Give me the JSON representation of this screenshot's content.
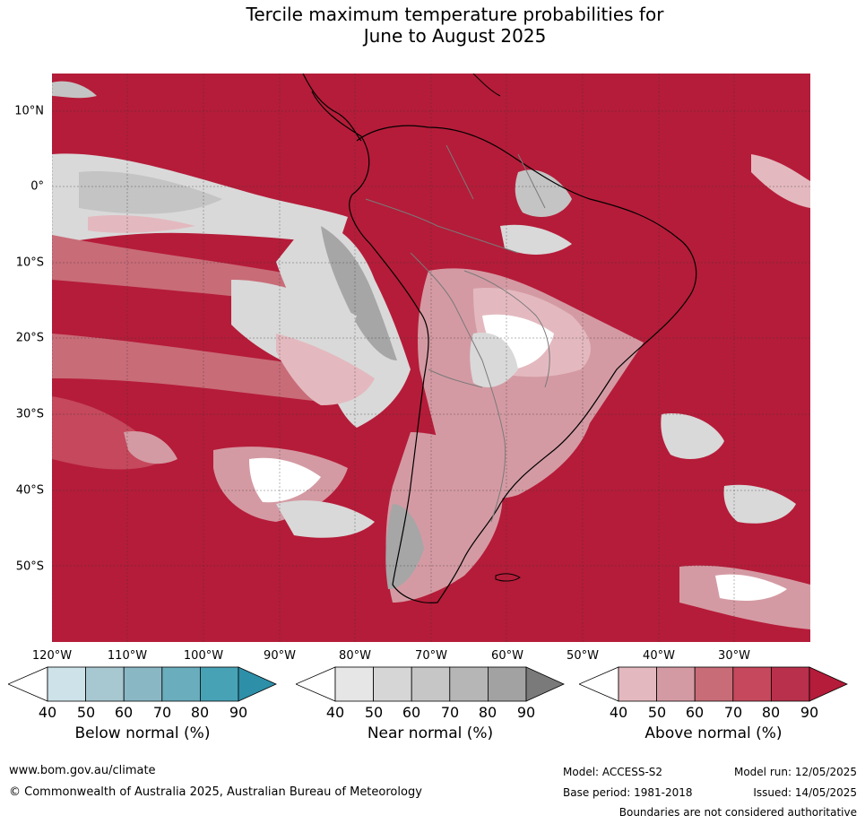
{
  "title": {
    "line1": "Tercile maximum temperature probabilities for",
    "line2": "June to August 2025"
  },
  "map": {
    "lat_labels": [
      "10°N",
      "0°",
      "10°S",
      "20°S",
      "30°S",
      "40°S",
      "50°S"
    ],
    "lon_labels": [
      "120°W",
      "110°W",
      "100°W",
      "90°W",
      "80°W",
      "70°W",
      "60°W",
      "50°W",
      "40°W",
      "30°W"
    ],
    "colors": {
      "ocean_above": "#b51c39",
      "land_above": "#b51c39",
      "above_80": "#c5485c",
      "above_70": "#c86c78",
      "above_60": "#d49aa3",
      "above_50": "#e3b9bf",
      "near_50": "#d9d9d9",
      "near_60": "#c4c4c4",
      "near_80": "#a6a6a6",
      "white": "#ffffff"
    }
  },
  "colorbars": [
    {
      "label": "Below normal (%)",
      "ticks": [
        "40",
        "50",
        "60",
        "70",
        "80",
        "90"
      ],
      "colors": [
        "#ffffff",
        "#cde3e9",
        "#a7c8d0",
        "#8ab7c4",
        "#6aadbd",
        "#48a2b6",
        "#2e8fa8"
      ]
    },
    {
      "label": "Near normal (%)",
      "ticks": [
        "40",
        "50",
        "60",
        "70",
        "80",
        "90"
      ],
      "colors": [
        "#ffffff",
        "#e6e6e6",
        "#d6d6d6",
        "#c6c6c6",
        "#b6b6b6",
        "#a2a2a2",
        "#7a7a7a"
      ]
    },
    {
      "label": "Above normal (%)",
      "ticks": [
        "40",
        "50",
        "60",
        "70",
        "80",
        "90"
      ],
      "colors": [
        "#ffffff",
        "#e3b9bf",
        "#d49aa3",
        "#c86c78",
        "#c5485c",
        "#b8304b",
        "#b51c39"
      ]
    }
  ],
  "footer": {
    "website": "www.bom.gov.au/climate",
    "copyright": "© Commonwealth of Australia 2025, Australian Bureau of Meteorology",
    "model": "Model: ACCESS-S2",
    "base_period": "Base period: 1981-2018",
    "model_run": "Model run: 12/05/2025",
    "issued": "Issued: 14/05/2025",
    "disclaimer": "Boundaries are not considered authoritative"
  }
}
